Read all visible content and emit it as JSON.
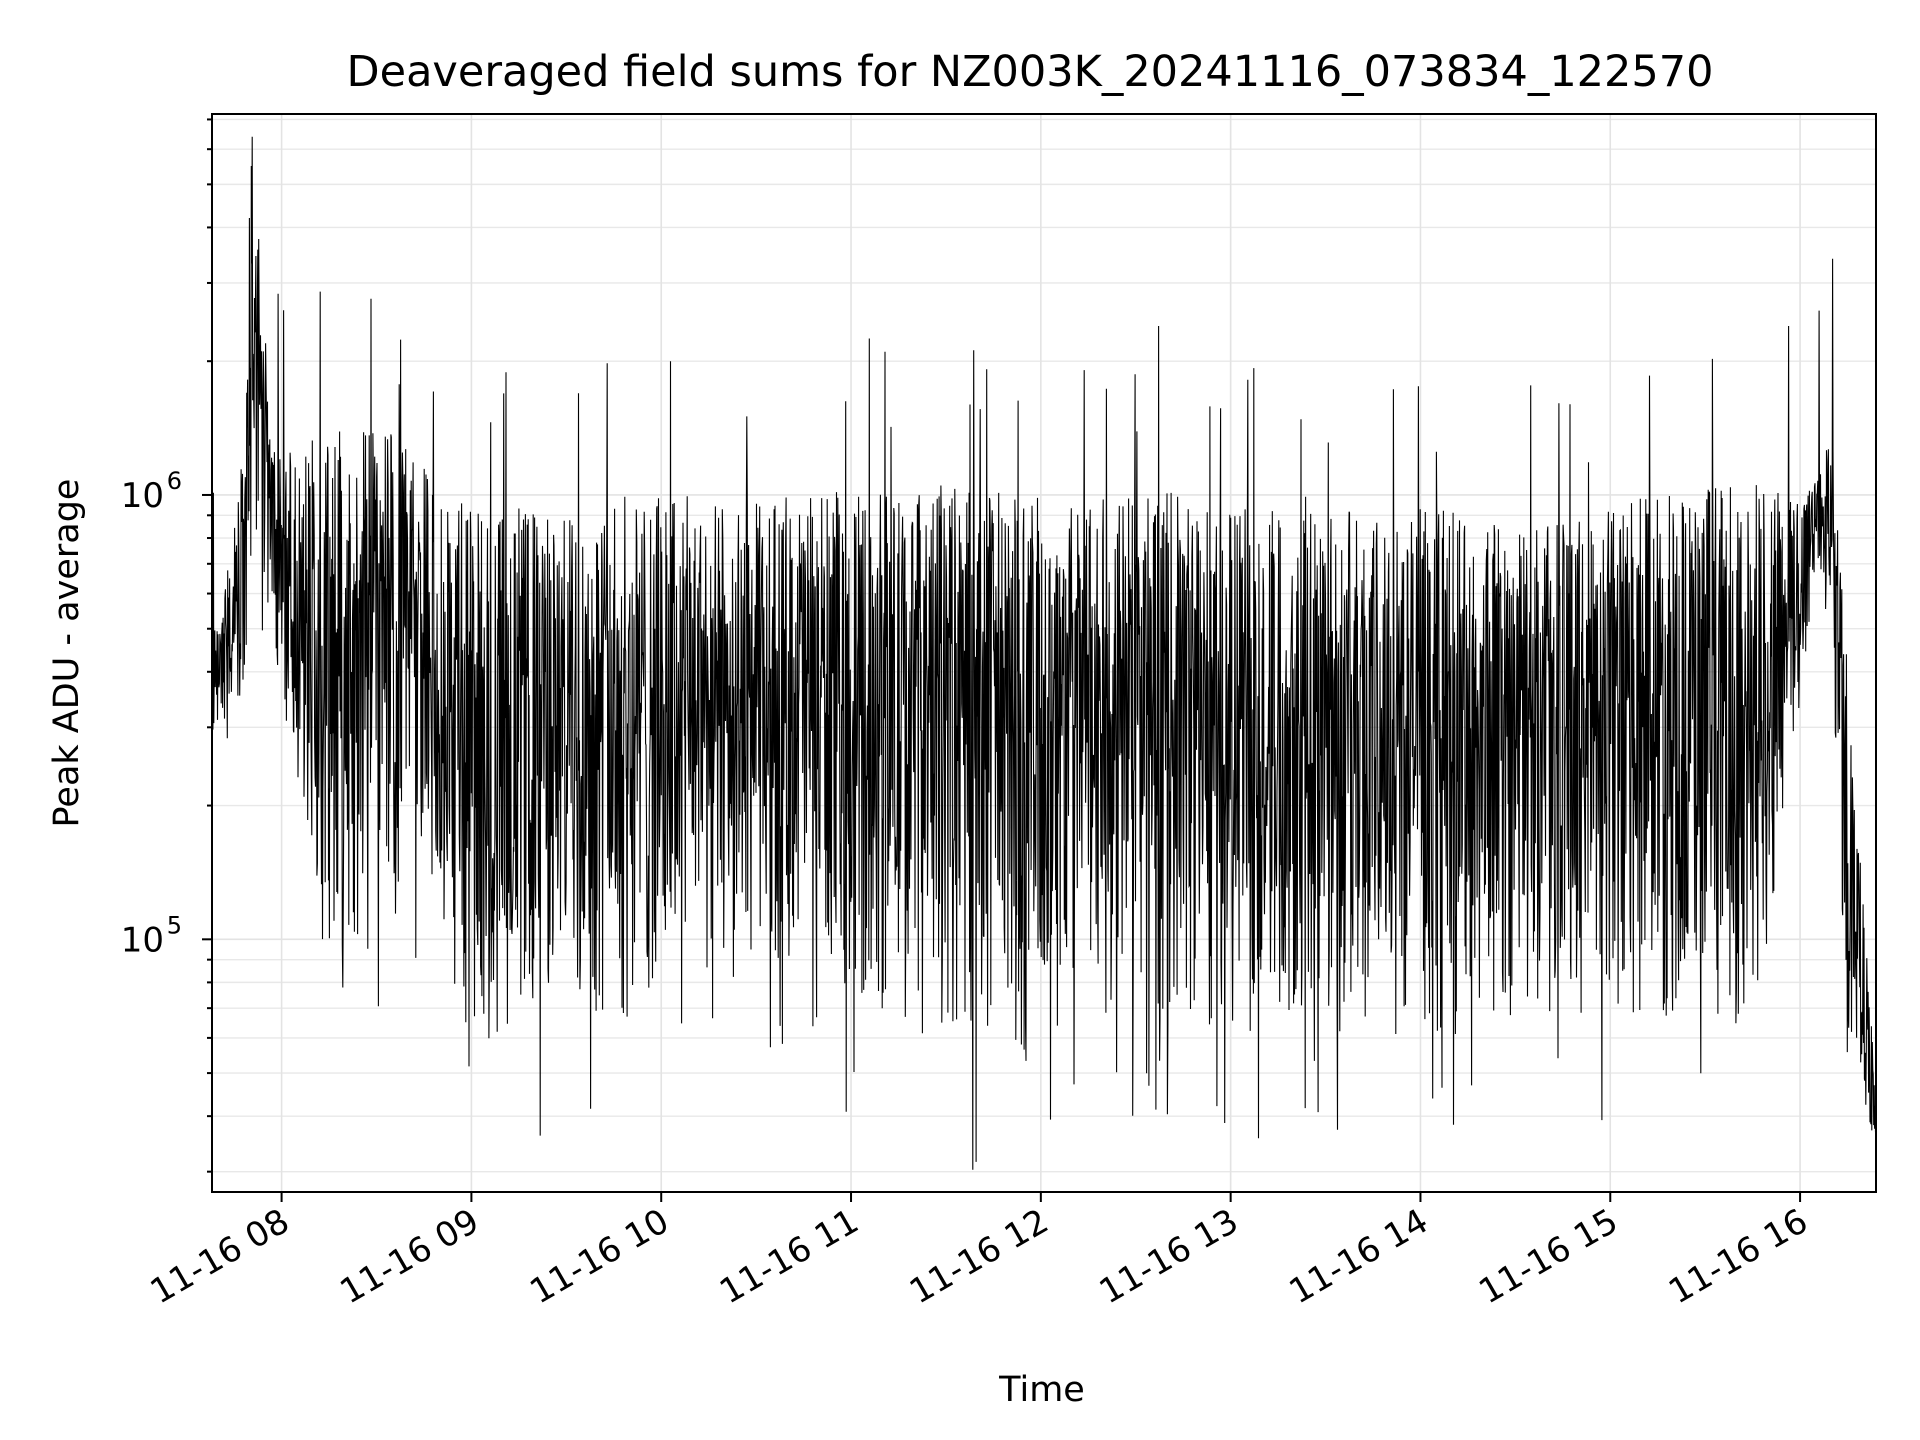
{
  "chart_data": {
    "type": "line",
    "title": "Deaveraged field sums for NZ003K_20241116_073834_122570",
    "xlabel": "Time",
    "ylabel": "Peak ADU - average",
    "yscale": "log",
    "grid": true,
    "x_tick_labels": [
      "11-16 08",
      "11-16 09",
      "11-16 10",
      "11-16 11",
      "11-16 12",
      "11-16 13",
      "11-16 14",
      "11-16 15",
      "11-16 16"
    ],
    "y_tick_labels": [
      {
        "base": "10",
        "exp": "5",
        "value": 100000
      },
      {
        "base": "10",
        "exp": "6",
        "value": 1000000
      }
    ],
    "xlim": [
      "2024-11-16 07:38",
      "2024-11-16 16:24"
    ],
    "ylim": [
      27000,
      7200000
    ],
    "envelope": {
      "note_hours_from_label": "x given as hours of day",
      "x": [
        7.667,
        7.8,
        7.85,
        7.95,
        8.1,
        8.3,
        8.55,
        8.75,
        8.95,
        9.2,
        9.5,
        9.8,
        10.1,
        10.4,
        10.7,
        11.0,
        11.3,
        11.6,
        11.9,
        12.2,
        12.5,
        12.8,
        13.1,
        13.4,
        13.7,
        14.0,
        14.3,
        14.6,
        14.9,
        15.2,
        15.5,
        15.75,
        15.95,
        16.1,
        16.17,
        16.25,
        16.4
      ],
      "high": [
        500000,
        1300000,
        5800000,
        1400000,
        1300000,
        1400000,
        1400000,
        1200000,
        1000000,
        950000,
        900000,
        1000000,
        1000000,
        950000,
        1000000,
        1050000,
        1000000,
        1100000,
        1000000,
        950000,
        1050000,
        1000000,
        950000,
        1000000,
        900000,
        950000,
        900000,
        850000,
        900000,
        1000000,
        1050000,
        1100000,
        1000000,
        1200000,
        1400000,
        400000,
        45000
      ],
      "low": [
        250000,
        300000,
        700000,
        500000,
        150000,
        60000,
        90000,
        150000,
        50000,
        60000,
        70000,
        60000,
        80000,
        80000,
        90000,
        70000,
        60000,
        55000,
        50000,
        70000,
        65000,
        60000,
        60000,
        65000,
        60000,
        60000,
        60000,
        70000,
        65000,
        60000,
        65000,
        60000,
        200000,
        700000,
        400000,
        50000,
        35000
      ]
    }
  }
}
